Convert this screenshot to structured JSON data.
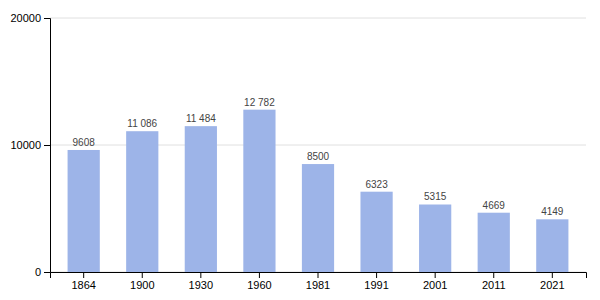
{
  "chart_data": {
    "type": "bar",
    "categories": [
      "1864",
      "1900",
      "1930",
      "1960",
      "1981",
      "1991",
      "2001",
      "2011",
      "2021"
    ],
    "values": [
      9608,
      11086,
      11484,
      12782,
      8500,
      6323,
      5315,
      4669,
      4149
    ],
    "value_labels": [
      "9608",
      "11 086",
      "11 484",
      "12 782",
      "8500",
      "6323",
      "5315",
      "4669",
      "4149"
    ],
    "color": "#9db4e8",
    "ylim": [
      0,
      20000
    ],
    "yticks": [
      0,
      10000,
      20000
    ],
    "grid": true,
    "data_labels": true
  }
}
